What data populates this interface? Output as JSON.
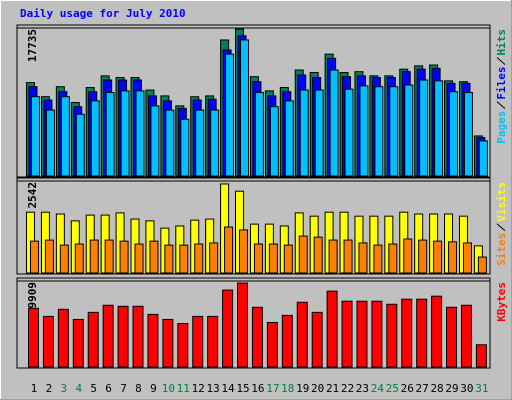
{
  "chart_data": [
    {
      "type": "bar",
      "title": "Daily usage for July 2010",
      "ylim": [
        0,
        17735
      ],
      "yticks": [
        17735
      ],
      "series": [
        {
          "name": "Pages",
          "color": "#00c0ff",
          "values": [
            9500,
            7900,
            9500,
            7400,
            9000,
            10000,
            10200,
            10200,
            8400,
            7900,
            6800,
            7900,
            7900,
            14600,
            16300,
            10000,
            8300,
            9000,
            10300,
            10300,
            12700,
            10400,
            10800,
            10700,
            10700,
            10900,
            11500,
            11400,
            10100,
            10000,
            4200
          ]
        },
        {
          "name": "Files",
          "color": "#0000ff",
          "values": [
            10700,
            9100,
            10100,
            8300,
            10100,
            11500,
            11500,
            11500,
            9600,
            9000,
            8100,
            9100,
            9200,
            15100,
            16800,
            11300,
            9600,
            10100,
            12100,
            11800,
            14100,
            11900,
            12000,
            11800,
            11800,
            12500,
            12800,
            12900,
            11100,
            11100,
            4600
          ]
        },
        {
          "name": "Hits",
          "color": "#00805c",
          "values": [
            11200,
            9500,
            10700,
            8800,
            10600,
            12000,
            11800,
            11800,
            10300,
            9600,
            8400,
            9500,
            9600,
            16300,
            17600,
            11900,
            10200,
            10600,
            12700,
            12400,
            14600,
            12400,
            12500,
            12000,
            12000,
            12800,
            13200,
            13300,
            11400,
            11300,
            4800
          ]
        }
      ]
    },
    {
      "type": "bar",
      "ylim": [
        0,
        2542
      ],
      "yticks": [
        2542
      ],
      "series": [
        {
          "name": "Sites",
          "color": "#ff8000",
          "values": [
            880,
            910,
            770,
            800,
            910,
            910,
            880,
            800,
            880,
            770,
            770,
            800,
            830,
            1270,
            1190,
            800,
            800,
            770,
            1020,
            990,
            910,
            910,
            830,
            770,
            800,
            940,
            910,
            880,
            860,
            830,
            440
          ]
        },
        {
          "name": "Visits",
          "color": "#ffff00",
          "values": [
            1680,
            1680,
            1630,
            1440,
            1600,
            1600,
            1660,
            1490,
            1440,
            1240,
            1300,
            1460,
            1490,
            2460,
            2260,
            1350,
            1350,
            1300,
            1660,
            1570,
            1680,
            1680,
            1570,
            1570,
            1570,
            1680,
            1630,
            1630,
            1630,
            1570,
            750
          ]
        }
      ]
    },
    {
      "type": "bar",
      "ylim": [
        0,
        199909
      ],
      "yticks": [
        199909
      ],
      "categories": [
        "1",
        "2",
        "3",
        "4",
        "5",
        "6",
        "7",
        "8",
        "9",
        "10",
        "11",
        "12",
        "13",
        "14",
        "15",
        "16",
        "17",
        "18",
        "19",
        "20",
        "21",
        "22",
        "23",
        "24",
        "25",
        "26",
        "27",
        "28",
        "29",
        "30",
        "31"
      ],
      "category_colors": [
        "#000000",
        "#000000",
        "#008040",
        "#008040",
        "#000000",
        "#000000",
        "#000000",
        "#000000",
        "#000000",
        "#008040",
        "#008040",
        "#000000",
        "#000000",
        "#000000",
        "#000000",
        "#000000",
        "#008040",
        "#008040",
        "#000000",
        "#000000",
        "#000000",
        "#000000",
        "#000000",
        "#008040",
        "#008040",
        "#000000",
        "#000000",
        "#000000",
        "#000000",
        "#000000",
        "#008040"
      ],
      "series": [
        {
          "name": "KBytes",
          "color": "#ff0000",
          "values": [
            136400,
            117600,
            134100,
            110500,
            127000,
            143500,
            141100,
            141100,
            122300,
            110500,
            101100,
            117600,
            117600,
            178800,
            195200,
            138800,
            103500,
            120000,
            150500,
            127000,
            176400,
            152900,
            152900,
            152900,
            145800,
            157600,
            157600,
            164600,
            138800,
            143500,
            51700
          ]
        }
      ]
    }
  ]
}
